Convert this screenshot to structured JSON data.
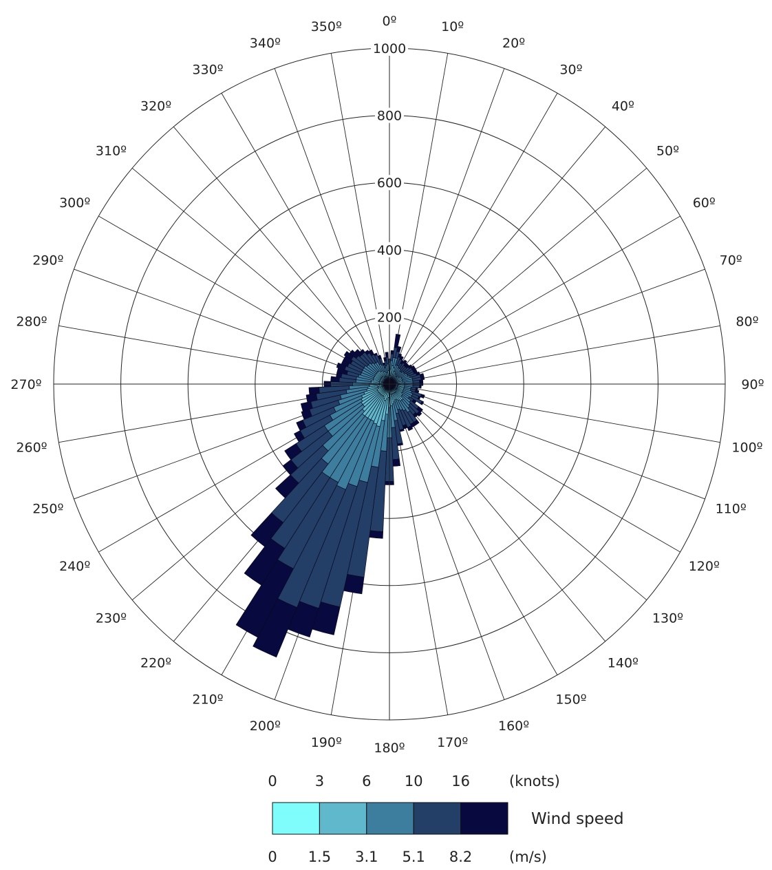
{
  "chart_data": {
    "type": "windrose",
    "radial_ticks": [
      200,
      400,
      600,
      800,
      1000
    ],
    "rmax": 1000,
    "direction_labels": [
      "0º",
      "10º",
      "20º",
      "30º",
      "40º",
      "50º",
      "60º",
      "70º",
      "80º",
      "90º",
      "100º",
      "110º",
      "120º",
      "130º",
      "140º",
      "150º",
      "160º",
      "170º",
      "180º",
      "190º",
      "200º",
      "210º",
      "220º",
      "230º",
      "240º",
      "250º",
      "260º",
      "270º",
      "280º",
      "290º",
      "300º",
      "310º",
      "320º",
      "330º",
      "340º",
      "350º"
    ],
    "sector_width_deg": 5,
    "sector_centers_deg": [
      0,
      5,
      10,
      15,
      20,
      25,
      30,
      35,
      40,
      45,
      50,
      55,
      60,
      65,
      70,
      75,
      80,
      85,
      90,
      95,
      100,
      105,
      110,
      115,
      120,
      125,
      130,
      135,
      140,
      145,
      150,
      155,
      160,
      165,
      170,
      175,
      180,
      185,
      190,
      195,
      200,
      205,
      210,
      215,
      220,
      225,
      230,
      235,
      240,
      245,
      250,
      255,
      260,
      265,
      270,
      275,
      280,
      285,
      290,
      295,
      300,
      305,
      310,
      315,
      320,
      325,
      330,
      335,
      340,
      345,
      350,
      355
    ],
    "speed_bins": {
      "knots": [
        "0",
        "3",
        "6",
        "10",
        "16"
      ],
      "ms": [
        "0",
        "1.5",
        "3.1",
        "5.1",
        "8.2"
      ],
      "knots_unit": "(knots)",
      "ms_unit": "(m/s)",
      "title": "Wind speed",
      "colors": [
        "#7ffcfc",
        "#5fb8cc",
        "#3d7d9e",
        "#233f68",
        "#08093f"
      ]
    },
    "series_cumulative": [
      [
        20,
        40,
        65,
        75,
        75
      ],
      [
        25,
        45,
        70,
        90,
        100
      ],
      [
        30,
        55,
        80,
        110,
        150
      ],
      [
        25,
        50,
        80,
        100,
        115
      ],
      [
        20,
        40,
        60,
        85,
        95
      ],
      [
        20,
        40,
        60,
        80,
        90
      ],
      [
        15,
        35,
        55,
        70,
        80
      ],
      [
        15,
        35,
        55,
        75,
        85
      ],
      [
        15,
        30,
        50,
        70,
        80
      ],
      [
        15,
        30,
        50,
        70,
        80
      ],
      [
        15,
        35,
        55,
        75,
        85
      ],
      [
        20,
        35,
        55,
        80,
        90
      ],
      [
        20,
        40,
        60,
        80,
        90
      ],
      [
        20,
        40,
        60,
        80,
        90
      ],
      [
        20,
        40,
        65,
        85,
        95
      ],
      [
        20,
        40,
        70,
        95,
        105
      ],
      [
        20,
        40,
        70,
        95,
        105
      ],
      [
        20,
        45,
        70,
        90,
        100
      ],
      [
        25,
        45,
        70,
        90,
        100
      ],
      [
        25,
        45,
        70,
        90,
        95
      ],
      [
        25,
        45,
        65,
        80,
        85
      ],
      [
        25,
        45,
        65,
        80,
        90
      ],
      [
        25,
        45,
        70,
        100,
        110
      ],
      [
        25,
        45,
        75,
        95,
        100
      ],
      [
        25,
        45,
        75,
        110,
        115
      ],
      [
        25,
        45,
        70,
        85,
        95
      ],
      [
        25,
        50,
        80,
        110,
        125
      ],
      [
        25,
        50,
        85,
        120,
        130
      ],
      [
        30,
        60,
        90,
        115,
        125
      ],
      [
        30,
        60,
        100,
        135,
        145
      ],
      [
        30,
        55,
        90,
        135,
        145
      ],
      [
        30,
        50,
        85,
        140,
        150
      ],
      [
        30,
        50,
        80,
        130,
        140
      ],
      [
        30,
        55,
        90,
        140,
        145
      ],
      [
        30,
        60,
        110,
        180,
        185
      ],
      [
        30,
        65,
        130,
        225,
        245
      ],
      [
        35,
        70,
        160,
        290,
        300
      ],
      [
        40,
        90,
        200,
        440,
        460
      ],
      [
        45,
        110,
        250,
        580,
        630
      ],
      [
        50,
        130,
        300,
        680,
        765
      ],
      [
        45,
        125,
        320,
        700,
        790
      ],
      [
        40,
        120,
        340,
        720,
        880
      ],
      [
        40,
        120,
        330,
        620,
        850
      ],
      [
        40,
        120,
        330,
        580,
        710
      ],
      [
        40,
        120,
        300,
        520,
        610
      ],
      [
        40,
        110,
        270,
        400,
        460
      ],
      [
        40,
        100,
        230,
        370,
        400
      ],
      [
        40,
        100,
        230,
        330,
        370
      ],
      [
        40,
        95,
        200,
        300,
        320
      ],
      [
        40,
        90,
        180,
        280,
        300
      ],
      [
        35,
        80,
        160,
        250,
        275
      ],
      [
        35,
        70,
        150,
        240,
        270
      ],
      [
        35,
        65,
        130,
        220,
        250
      ],
      [
        30,
        60,
        120,
        210,
        240
      ],
      [
        30,
        60,
        110,
        175,
        195
      ],
      [
        30,
        55,
        100,
        150,
        175
      ],
      [
        30,
        55,
        100,
        145,
        160
      ],
      [
        30,
        50,
        95,
        130,
        160
      ],
      [
        30,
        50,
        90,
        140,
        165
      ],
      [
        30,
        50,
        90,
        135,
        155
      ],
      [
        30,
        50,
        90,
        130,
        155
      ],
      [
        30,
        50,
        90,
        135,
        160
      ],
      [
        30,
        50,
        85,
        125,
        150
      ],
      [
        30,
        50,
        85,
        120,
        140
      ],
      [
        30,
        50,
        80,
        120,
        130
      ],
      [
        25,
        45,
        75,
        110,
        120
      ],
      [
        25,
        45,
        75,
        100,
        115
      ],
      [
        25,
        40,
        65,
        95,
        100
      ],
      [
        25,
        40,
        60,
        80,
        90
      ],
      [
        20,
        35,
        50,
        60,
        65
      ],
      [
        20,
        35,
        55,
        70,
        80
      ],
      [
        20,
        40,
        60,
        80,
        95
      ]
    ]
  }
}
